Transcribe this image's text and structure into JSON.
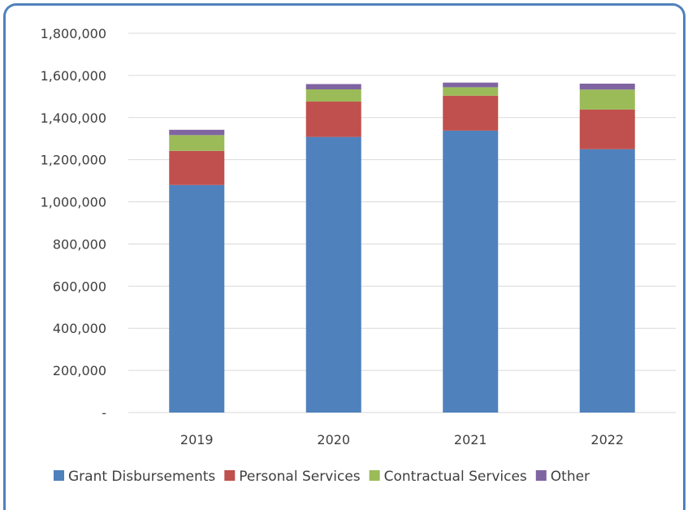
{
  "chart_data": {
    "type": "bar",
    "stacked": true,
    "categories": [
      "2019",
      "2020",
      "2021",
      "2022"
    ],
    "series": [
      {
        "name": "Grant Disbursements",
        "color": "#4f81bd",
        "values": [
          1080000,
          1308000,
          1338000,
          1250000
        ]
      },
      {
        "name": "Personal Services",
        "color": "#c0504d",
        "values": [
          162000,
          168000,
          166000,
          188000
        ]
      },
      {
        "name": "Contractual Services",
        "color": "#9bbb59",
        "values": [
          75000,
          58000,
          40000,
          95000
        ]
      },
      {
        "name": "Other",
        "color": "#8064a2",
        "values": [
          25000,
          25000,
          22000,
          28000
        ]
      }
    ],
    "ylim": [
      0,
      1800000
    ],
    "yticks": [
      0,
      200000,
      400000,
      600000,
      800000,
      1000000,
      1200000,
      1400000,
      1600000,
      1800000
    ],
    "ytick_labels": [
      "-",
      "200,000",
      "400,000",
      "600,000",
      "800,000",
      "1,000,000",
      "1,200,000",
      "1,400,000",
      "1,600,000",
      "1,800,000"
    ],
    "grid": true,
    "legend": "bottom",
    "title": "",
    "xlabel": "",
    "ylabel": ""
  }
}
